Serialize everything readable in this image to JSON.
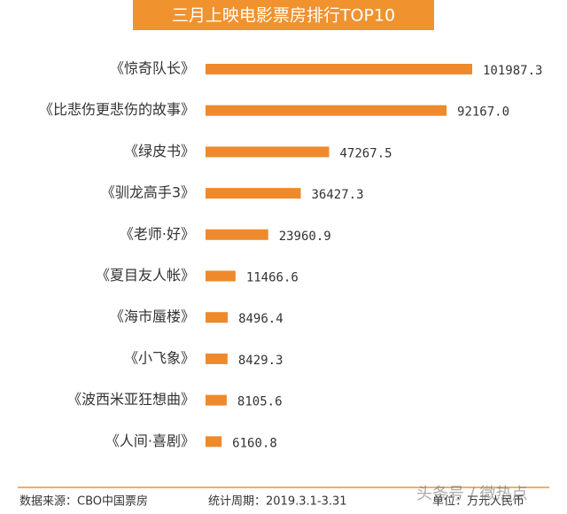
{
  "chart_data": {
    "type": "bar",
    "orientation": "horizontal",
    "title": "三月上映电影票房排行TOP10",
    "categories": [
      "《惊奇队长》",
      "《比悲伤更悲伤的故事》",
      "《绿皮书》",
      "《驯龙高手3》",
      "《老师·好》",
      "《夏目友人帐》",
      "《海市蜃楼》",
      "《小飞象》",
      "《波西米亚狂想曲》",
      "《人间·喜剧》"
    ],
    "values": [
      101987.3,
      92167.0,
      47267.5,
      36427.3,
      23960.9,
      11466.6,
      8496.4,
      8429.3,
      8105.6,
      6160.8
    ],
    "value_labels": [
      "101987.3",
      "92167.0",
      "47267.5",
      "36427.3",
      "23960.9",
      "11466.6",
      "8496.4",
      "8429.3",
      "8105.6",
      "6160.8"
    ],
    "color": "#ee8a2c",
    "source": "数据来源：CBO中国票房",
    "period": "统计周期：2019.3.1-3.31",
    "unit": "单位：万元人民币",
    "watermark": "头条号 / 微热点"
  }
}
